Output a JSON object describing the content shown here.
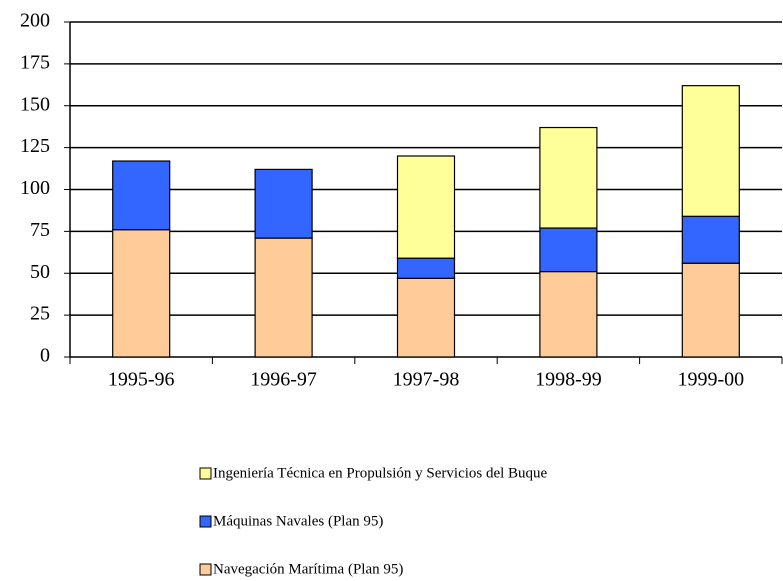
{
  "chart_data": {
    "type": "bar",
    "stacked": true,
    "categories": [
      "1995-96",
      "1996-97",
      "1997-98",
      "1998-99",
      "1999-00"
    ],
    "series": [
      {
        "name": "Navegación Marítima (Plan 95)",
        "color": "#ffcc99",
        "values": [
          76,
          71,
          47,
          51,
          56
        ]
      },
      {
        "name": "Máquinas Navales (Plan 95)",
        "color": "#3366ff",
        "values": [
          41,
          41,
          12,
          26,
          28
        ]
      },
      {
        "name": "Ingeniería Técnica en Propulsión y Servicios del Buque",
        "color": "#ffff99",
        "values": [
          null,
          null,
          61,
          60,
          78
        ]
      }
    ],
    "ylim": [
      0,
      200
    ],
    "yticks": [
      0,
      25,
      50,
      75,
      100,
      125,
      150,
      175,
      200
    ],
    "grid": true
  }
}
